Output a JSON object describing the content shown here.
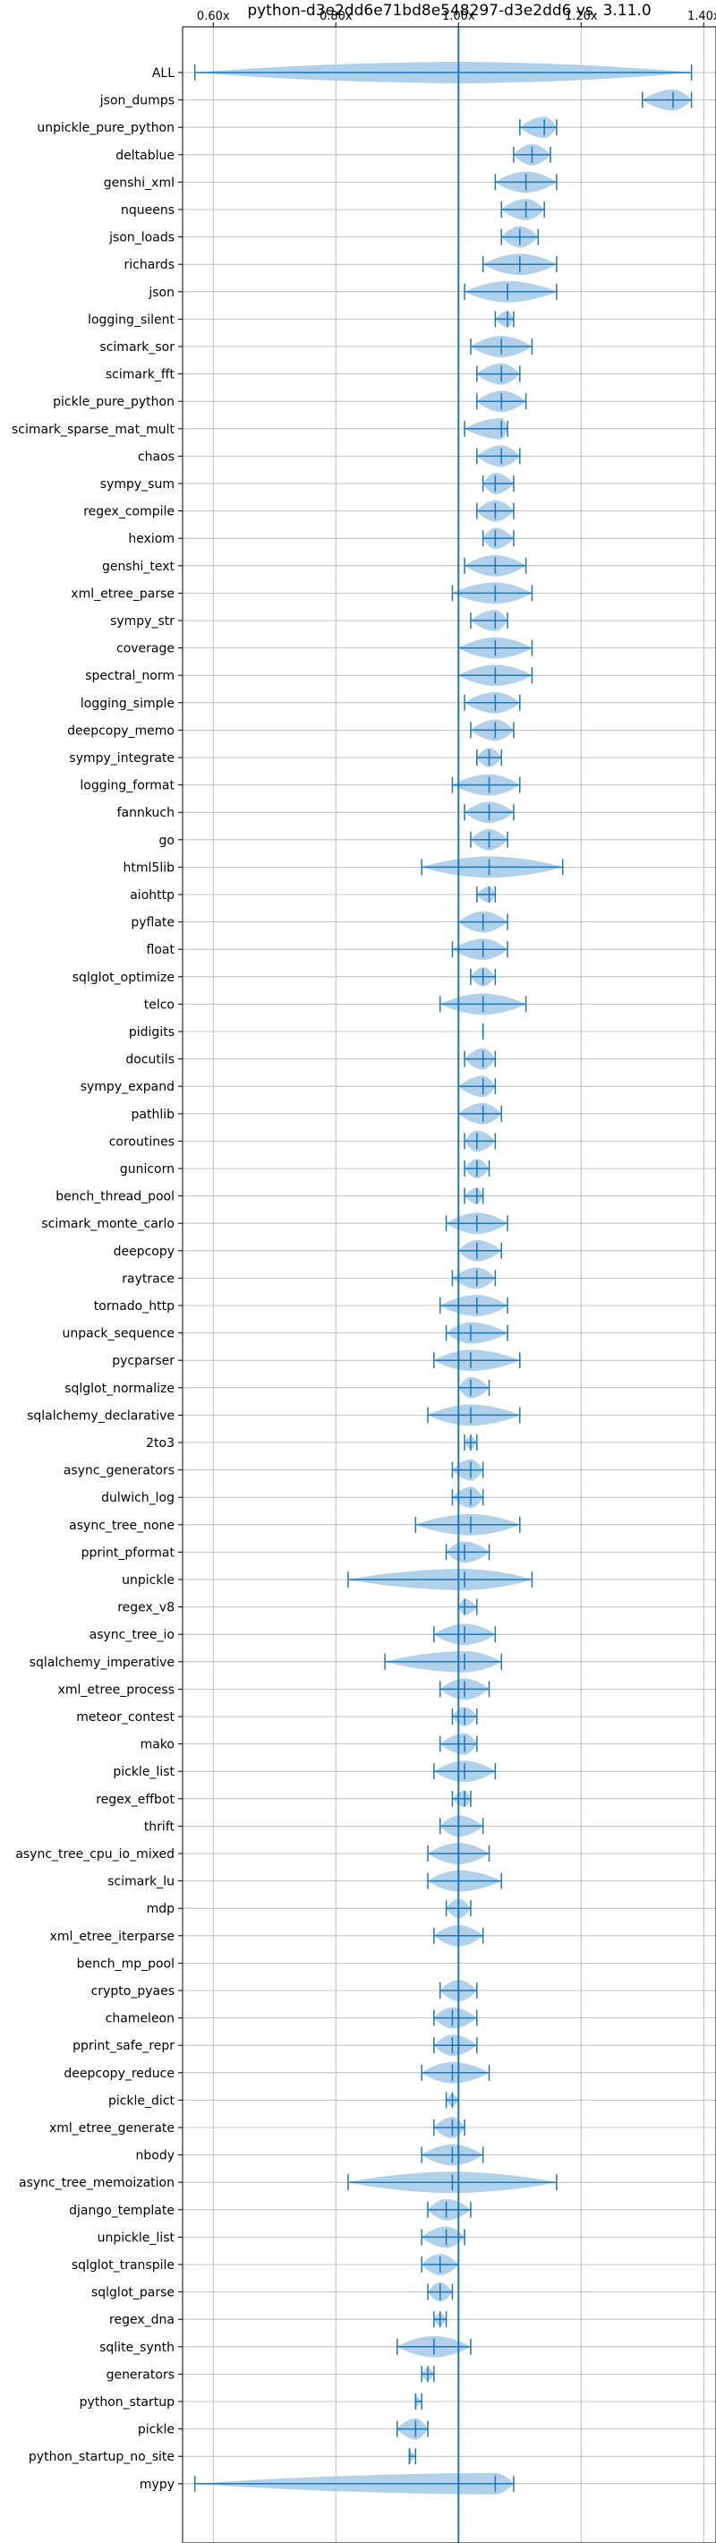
{
  "chart_data": {
    "type": "violin",
    "title": "python-d3e2dd6e71bd8e548297-d3e2dd6 vs. 3.11.0",
    "xlabel": "",
    "ylabel": "",
    "xlim": [
      0.55,
      1.42
    ],
    "xticks": [
      0.6,
      0.8,
      1.0,
      1.2,
      1.4
    ],
    "xtick_labels": [
      "0.60x",
      "0.80x",
      "1.00x",
      "1.20x",
      "1.40x"
    ],
    "tick_axes": [
      "top",
      "bottom"
    ],
    "grid": true,
    "reference_line": 1.0,
    "colors": {
      "violin": "#a9cce9",
      "marker": "#1f77b4",
      "grid": "#b0b0b0"
    },
    "benchmarks": [
      {
        "name": "ALL",
        "min": 0.57,
        "max": 1.38,
        "median": 1.0
      },
      {
        "name": "json_dumps",
        "min": 1.3,
        "max": 1.38,
        "median": 1.35
      },
      {
        "name": "unpickle_pure_python",
        "min": 1.1,
        "max": 1.16,
        "median": 1.14
      },
      {
        "name": "deltablue",
        "min": 1.09,
        "max": 1.15,
        "median": 1.12
      },
      {
        "name": "genshi_xml",
        "min": 1.06,
        "max": 1.16,
        "median": 1.11
      },
      {
        "name": "nqueens",
        "min": 1.07,
        "max": 1.14,
        "median": 1.11
      },
      {
        "name": "json_loads",
        "min": 1.07,
        "max": 1.13,
        "median": 1.1
      },
      {
        "name": "richards",
        "min": 1.04,
        "max": 1.16,
        "median": 1.1
      },
      {
        "name": "json",
        "min": 1.01,
        "max": 1.16,
        "median": 1.08
      },
      {
        "name": "logging_silent",
        "min": 1.06,
        "max": 1.09,
        "median": 1.08
      },
      {
        "name": "scimark_sor",
        "min": 1.02,
        "max": 1.12,
        "median": 1.07
      },
      {
        "name": "scimark_fft",
        "min": 1.03,
        "max": 1.1,
        "median": 1.07
      },
      {
        "name": "pickle_pure_python",
        "min": 1.03,
        "max": 1.11,
        "median": 1.07
      },
      {
        "name": "scimark_sparse_mat_mult",
        "min": 1.01,
        "max": 1.08,
        "median": 1.07
      },
      {
        "name": "chaos",
        "min": 1.03,
        "max": 1.1,
        "median": 1.07
      },
      {
        "name": "sympy_sum",
        "min": 1.04,
        "max": 1.09,
        "median": 1.06
      },
      {
        "name": "regex_compile",
        "min": 1.03,
        "max": 1.09,
        "median": 1.06
      },
      {
        "name": "hexiom",
        "min": 1.04,
        "max": 1.09,
        "median": 1.06
      },
      {
        "name": "genshi_text",
        "min": 1.01,
        "max": 1.11,
        "median": 1.06
      },
      {
        "name": "xml_etree_parse",
        "min": 0.99,
        "max": 1.12,
        "median": 1.06
      },
      {
        "name": "sympy_str",
        "min": 1.02,
        "max": 1.08,
        "median": 1.06
      },
      {
        "name": "coverage",
        "min": 1.0,
        "max": 1.12,
        "median": 1.06
      },
      {
        "name": "spectral_norm",
        "min": 1.0,
        "max": 1.12,
        "median": 1.06
      },
      {
        "name": "logging_simple",
        "min": 1.01,
        "max": 1.1,
        "median": 1.06
      },
      {
        "name": "deepcopy_memo",
        "min": 1.02,
        "max": 1.09,
        "median": 1.06
      },
      {
        "name": "sympy_integrate",
        "min": 1.03,
        "max": 1.07,
        "median": 1.05
      },
      {
        "name": "logging_format",
        "min": 0.99,
        "max": 1.1,
        "median": 1.05
      },
      {
        "name": "fannkuch",
        "min": 1.01,
        "max": 1.09,
        "median": 1.05
      },
      {
        "name": "go",
        "min": 1.02,
        "max": 1.08,
        "median": 1.05
      },
      {
        "name": "html5lib",
        "min": 0.94,
        "max": 1.17,
        "median": 1.05
      },
      {
        "name": "aiohttp",
        "min": 1.03,
        "max": 1.06,
        "median": 1.05
      },
      {
        "name": "pyflate",
        "min": 1.0,
        "max": 1.08,
        "median": 1.04
      },
      {
        "name": "float",
        "min": 0.99,
        "max": 1.08,
        "median": 1.04
      },
      {
        "name": "sqlglot_optimize",
        "min": 1.02,
        "max": 1.06,
        "median": 1.04
      },
      {
        "name": "telco",
        "min": 0.97,
        "max": 1.11,
        "median": 1.04
      },
      {
        "name": "pidigits",
        "min": 1.04,
        "max": 1.04,
        "median": 1.04
      },
      {
        "name": "docutils",
        "min": 1.01,
        "max": 1.06,
        "median": 1.04
      },
      {
        "name": "sympy_expand",
        "min": 1.0,
        "max": 1.06,
        "median": 1.04
      },
      {
        "name": "pathlib",
        "min": 1.0,
        "max": 1.07,
        "median": 1.04
      },
      {
        "name": "coroutines",
        "min": 1.01,
        "max": 1.06,
        "median": 1.03
      },
      {
        "name": "gunicorn",
        "min": 1.01,
        "max": 1.05,
        "median": 1.03
      },
      {
        "name": "bench_thread_pool",
        "min": 1.01,
        "max": 1.04,
        "median": 1.03
      },
      {
        "name": "scimark_monte_carlo",
        "min": 0.98,
        "max": 1.08,
        "median": 1.03
      },
      {
        "name": "deepcopy",
        "min": 1.0,
        "max": 1.07,
        "median": 1.03
      },
      {
        "name": "raytrace",
        "min": 0.99,
        "max": 1.06,
        "median": 1.03
      },
      {
        "name": "tornado_http",
        "min": 0.97,
        "max": 1.08,
        "median": 1.03
      },
      {
        "name": "unpack_sequence",
        "min": 0.98,
        "max": 1.08,
        "median": 1.02
      },
      {
        "name": "pycparser",
        "min": 0.96,
        "max": 1.1,
        "median": 1.02
      },
      {
        "name": "sqlglot_normalize",
        "min": 1.0,
        "max": 1.05,
        "median": 1.02
      },
      {
        "name": "sqlalchemy_declarative",
        "min": 0.95,
        "max": 1.1,
        "median": 1.02
      },
      {
        "name": "2to3",
        "min": 1.01,
        "max": 1.03,
        "median": 1.02
      },
      {
        "name": "async_generators",
        "min": 0.99,
        "max": 1.04,
        "median": 1.02
      },
      {
        "name": "dulwich_log",
        "min": 0.99,
        "max": 1.04,
        "median": 1.02
      },
      {
        "name": "async_tree_none",
        "min": 0.93,
        "max": 1.1,
        "median": 1.02
      },
      {
        "name": "pprint_pformat",
        "min": 0.98,
        "max": 1.05,
        "median": 1.01
      },
      {
        "name": "unpickle",
        "min": 0.82,
        "max": 1.12,
        "median": 1.01
      },
      {
        "name": "regex_v8",
        "min": 1.0,
        "max": 1.03,
        "median": 1.01
      },
      {
        "name": "async_tree_io",
        "min": 0.96,
        "max": 1.06,
        "median": 1.01
      },
      {
        "name": "sqlalchemy_imperative",
        "min": 0.88,
        "max": 1.07,
        "median": 1.01
      },
      {
        "name": "xml_etree_process",
        "min": 0.97,
        "max": 1.05,
        "median": 1.01
      },
      {
        "name": "meteor_contest",
        "min": 0.99,
        "max": 1.03,
        "median": 1.01
      },
      {
        "name": "mako",
        "min": 0.97,
        "max": 1.03,
        "median": 1.01
      },
      {
        "name": "pickle_list",
        "min": 0.96,
        "max": 1.06,
        "median": 1.01
      },
      {
        "name": "regex_effbot",
        "min": 0.99,
        "max": 1.02,
        "median": 1.01
      },
      {
        "name": "thrift",
        "min": 0.97,
        "max": 1.04,
        "median": 1.0
      },
      {
        "name": "async_tree_cpu_io_mixed",
        "min": 0.95,
        "max": 1.05,
        "median": 1.0
      },
      {
        "name": "scimark_lu",
        "min": 0.95,
        "max": 1.07,
        "median": 1.0
      },
      {
        "name": "mdp",
        "min": 0.98,
        "max": 1.02,
        "median": 1.0
      },
      {
        "name": "xml_etree_iterparse",
        "min": 0.96,
        "max": 1.04,
        "median": 1.0
      },
      {
        "name": "bench_mp_pool",
        "min": 1.0,
        "max": 1.0,
        "median": 1.0
      },
      {
        "name": "crypto_pyaes",
        "min": 0.97,
        "max": 1.03,
        "median": 1.0
      },
      {
        "name": "chameleon",
        "min": 0.96,
        "max": 1.03,
        "median": 0.99
      },
      {
        "name": "pprint_safe_repr",
        "min": 0.96,
        "max": 1.03,
        "median": 0.99
      },
      {
        "name": "deepcopy_reduce",
        "min": 0.94,
        "max": 1.05,
        "median": 0.99
      },
      {
        "name": "pickle_dict",
        "min": 0.98,
        "max": 1.0,
        "median": 0.99
      },
      {
        "name": "xml_etree_generate",
        "min": 0.96,
        "max": 1.01,
        "median": 0.99
      },
      {
        "name": "nbody",
        "min": 0.94,
        "max": 1.04,
        "median": 0.99
      },
      {
        "name": "async_tree_memoization",
        "min": 0.82,
        "max": 1.16,
        "median": 0.99
      },
      {
        "name": "django_template",
        "min": 0.95,
        "max": 1.02,
        "median": 0.98
      },
      {
        "name": "unpickle_list",
        "min": 0.94,
        "max": 1.01,
        "median": 0.98
      },
      {
        "name": "sqlglot_transpile",
        "min": 0.94,
        "max": 1.0,
        "median": 0.97
      },
      {
        "name": "sqlglot_parse",
        "min": 0.95,
        "max": 0.99,
        "median": 0.97
      },
      {
        "name": "regex_dna",
        "min": 0.96,
        "max": 0.98,
        "median": 0.97
      },
      {
        "name": "sqlite_synth",
        "min": 0.9,
        "max": 1.02,
        "median": 0.96
      },
      {
        "name": "generators",
        "min": 0.94,
        "max": 0.96,
        "median": 0.95
      },
      {
        "name": "python_startup",
        "min": 0.93,
        "max": 0.94,
        "median": 0.93
      },
      {
        "name": "pickle",
        "min": 0.9,
        "max": 0.95,
        "median": 0.93
      },
      {
        "name": "python_startup_no_site",
        "min": 0.92,
        "max": 0.93,
        "median": 0.92
      },
      {
        "name": "mypy",
        "min": 0.57,
        "max": 1.09,
        "median": 1.06
      }
    ]
  }
}
